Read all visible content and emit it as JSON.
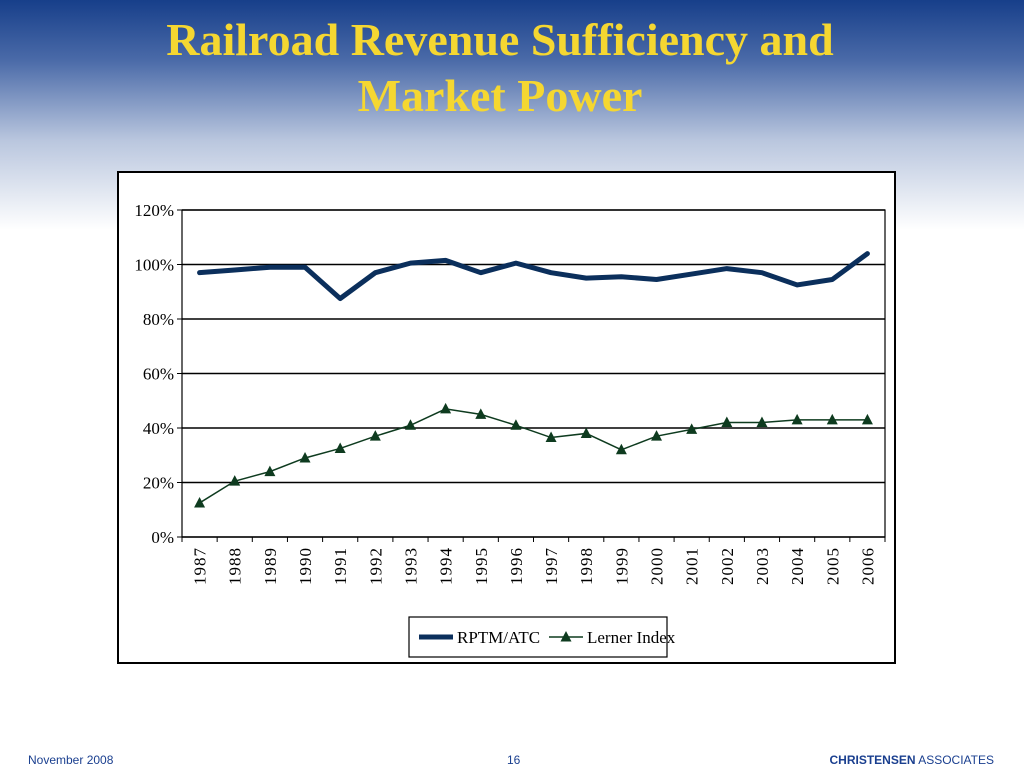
{
  "slide": {
    "title_line1": "Railroad Revenue Sufficiency and",
    "title_line2": "Market Power"
  },
  "footer": {
    "date": "November 2008",
    "page": "16",
    "company_bold": "CHRISTENSEN",
    "company_rest": " ASSOCIATES"
  },
  "colors": {
    "title": "#f5d731",
    "rptm_series": "#0b2f5c",
    "lerner_series": "#0e3b1f",
    "footer_text": "#1a3f8f"
  },
  "chart_data": {
    "type": "line",
    "title": "",
    "xlabel": "",
    "ylabel": "",
    "ylim": [
      0,
      1.2
    ],
    "ytick_labels": [
      "0%",
      "20%",
      "40%",
      "60%",
      "80%",
      "100%",
      "120%"
    ],
    "ytick_values": [
      0,
      0.2,
      0.4,
      0.6,
      0.8,
      1.0,
      1.2
    ],
    "grid": true,
    "legend_position": "bottom",
    "categories": [
      "1987",
      "1988",
      "1989",
      "1990",
      "1991",
      "1992",
      "1993",
      "1994",
      "1995",
      "1996",
      "1997",
      "1998",
      "1999",
      "2000",
      "2001",
      "2002",
      "2003",
      "2004",
      "2005",
      "2006"
    ],
    "series": [
      {
        "name": "RPTM/ATC",
        "marker": "none",
        "values": [
          0.97,
          0.98,
          0.99,
          0.99,
          0.875,
          0.97,
          1.005,
          1.015,
          0.97,
          1.005,
          0.97,
          0.95,
          0.955,
          0.945,
          0.965,
          0.985,
          0.97,
          0.925,
          0.945,
          1.04
        ]
      },
      {
        "name": "Lerner Index",
        "marker": "triangle",
        "values": [
          0.125,
          0.205,
          0.24,
          0.29,
          0.325,
          0.37,
          0.41,
          0.47,
          0.45,
          0.41,
          0.365,
          0.38,
          0.32,
          0.37,
          0.395,
          0.42,
          0.42,
          0.43,
          0.43,
          0.43
        ]
      }
    ]
  }
}
